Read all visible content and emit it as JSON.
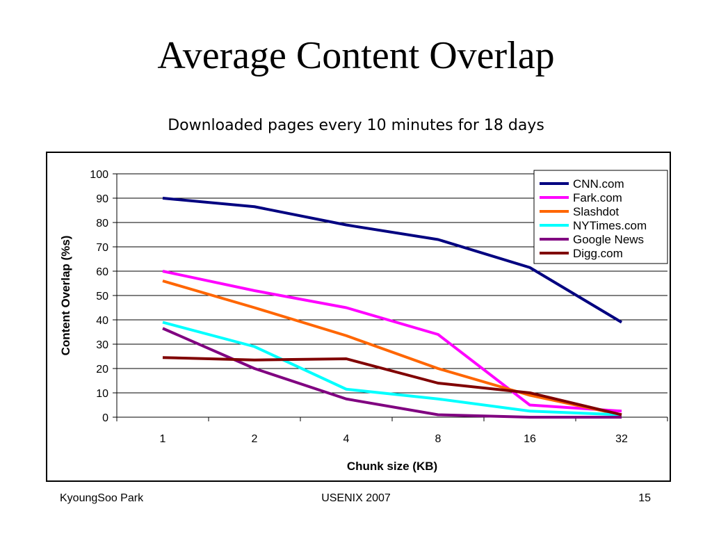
{
  "slide": {
    "title": "Average Content Overlap",
    "subtitle": "Downloaded pages every 10 minutes for 18 days"
  },
  "footer": {
    "author": "KyoungSoo Park",
    "venue": "USENIX 2007",
    "page": "15"
  },
  "chart_data": {
    "type": "line",
    "title": "",
    "xlabel": "Chunk size (KB)",
    "ylabel": "Content Overlap (%s)",
    "categories": [
      "1",
      "2",
      "4",
      "8",
      "16",
      "32"
    ],
    "ylim": [
      0,
      100
    ],
    "yticks": [
      0,
      10,
      20,
      30,
      40,
      50,
      60,
      70,
      80,
      90,
      100
    ],
    "grid": "horizontal",
    "legend_position": "top-right",
    "series": [
      {
        "name": "CNN.com",
        "color": "#000080",
        "values": [
          90,
          86.5,
          79,
          73,
          61.5,
          39
        ]
      },
      {
        "name": "Fark.com",
        "color": "#ff00ff",
        "values": [
          60,
          52,
          45,
          34,
          5,
          2.5
        ]
      },
      {
        "name": "Slashdot",
        "color": "#ff6600",
        "values": [
          56,
          45,
          33.5,
          20,
          9,
          1
        ]
      },
      {
        "name": "NYTimes.com",
        "color": "#00ffff",
        "values": [
          39,
          29,
          11.5,
          7.5,
          2.5,
          1
        ]
      },
      {
        "name": "Google News",
        "color": "#800080",
        "values": [
          36.5,
          20,
          7.5,
          1,
          0,
          0
        ]
      },
      {
        "name": "Digg.com",
        "color": "#800000",
        "values": [
          24.5,
          23.5,
          24,
          14,
          10,
          1
        ]
      }
    ]
  }
}
